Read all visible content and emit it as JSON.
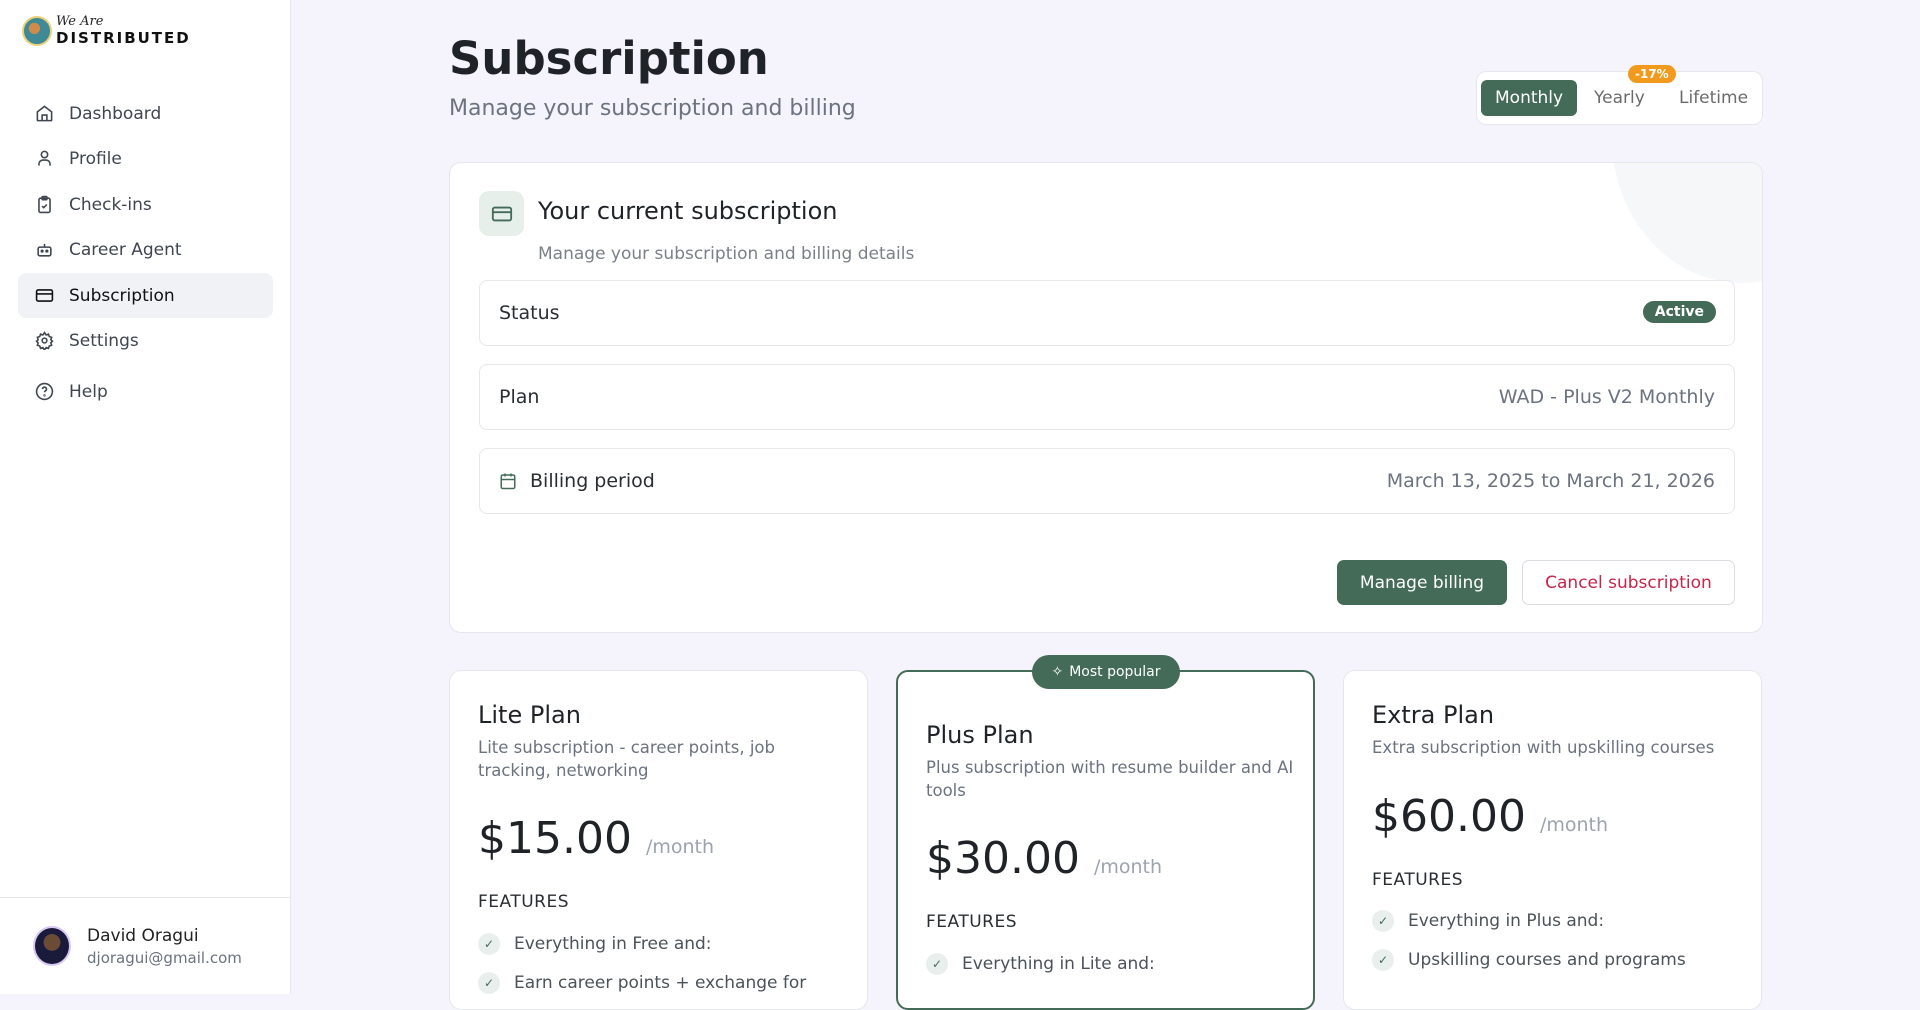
{
  "brand": {
    "line1": "We Are",
    "line2": "DISTRIBUTED"
  },
  "sidebar": {
    "items": [
      {
        "label": "Dashboard",
        "icon": "home-icon"
      },
      {
        "label": "Profile",
        "icon": "user-icon"
      },
      {
        "label": "Check-ins",
        "icon": "clipboard-check-icon"
      },
      {
        "label": "Career Agent",
        "icon": "bot-icon"
      },
      {
        "label": "Subscription",
        "icon": "credit-card-icon",
        "active": true
      },
      {
        "label": "Settings",
        "icon": "gear-icon"
      },
      {
        "label": "Help",
        "icon": "help-circle-icon"
      }
    ]
  },
  "user": {
    "name": "David Oragui",
    "email": "djoragui@gmail.com"
  },
  "header": {
    "title": "Subscription",
    "subtitle": "Manage your subscription and billing"
  },
  "billing_toggle": {
    "options": [
      "Monthly",
      "Yearly",
      "Lifetime"
    ],
    "selected": "Monthly",
    "yearly_discount": "-17%"
  },
  "current": {
    "title": "Your current subscription",
    "subtitle": "Manage your subscription and billing details",
    "status_label": "Status",
    "status": "Active",
    "plan_label": "Plan",
    "plan": "WAD - Plus V2 Monthly",
    "period_label": "Billing period",
    "period": "March 13, 2025 to March 21, 2026",
    "manage_label": "Manage billing",
    "cancel_label": "Cancel subscription"
  },
  "plans": [
    {
      "name": "Lite Plan",
      "desc": "Lite subscription - career points, job tracking, networking",
      "price": "$15.00",
      "per": "/month",
      "features_label": "FEATURES",
      "features": [
        "Everything in Free and:",
        "Earn career points + exchange for"
      ]
    },
    {
      "name": "Plus Plan",
      "desc": "Plus subscription with resume builder and AI tools",
      "price": "$30.00",
      "per": "/month",
      "features_label": "FEATURES",
      "badge": "Most popular",
      "features": [
        "Everything in Lite and:"
      ]
    },
    {
      "name": "Extra Plan",
      "desc": "Extra subscription with upskilling courses",
      "price": "$60.00",
      "per": "/month",
      "features_label": "FEATURES",
      "features": [
        "Everything in Plus and:",
        "Upskilling courses and programs"
      ]
    }
  ],
  "colors": {
    "accent": "#436b58",
    "discount": "#f29a1d",
    "danger": "#c8234a",
    "background": "#f5f4fd"
  }
}
